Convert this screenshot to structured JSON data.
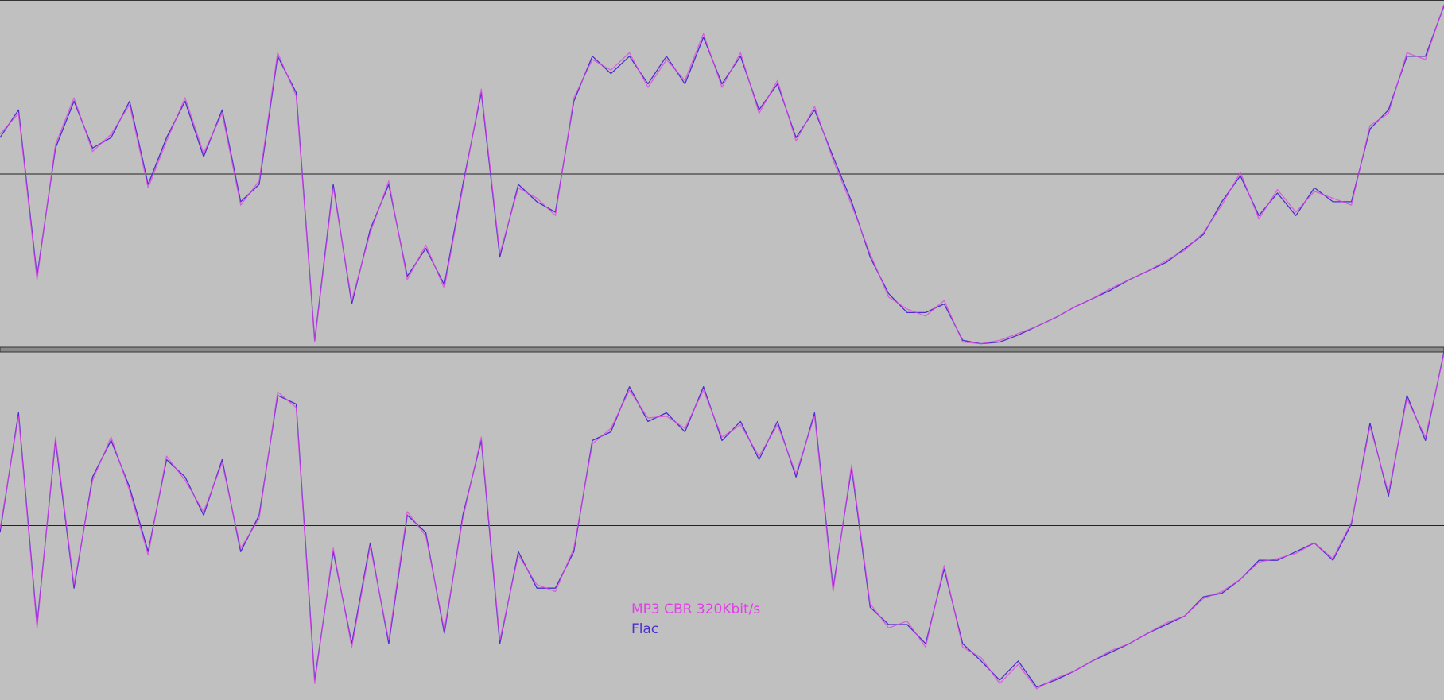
{
  "chart_data": [
    {
      "type": "line",
      "ylim": [
        -1,
        1
      ],
      "center_line": true,
      "series": [
        {
          "color": "#4a2ed0",
          "values": [
            0.21,
            0.37,
            -0.59,
            0.15,
            0.42,
            0.15,
            0.21,
            0.42,
            -0.06,
            0.21,
            0.42,
            0.1,
            0.37,
            -0.16,
            -0.06,
            0.68,
            0.47,
            -0.96,
            -0.06,
            -0.75,
            -0.32,
            -0.06,
            -0.59,
            -0.43,
            -0.64,
            -0.06,
            0.47,
            -0.48,
            -0.06,
            -0.16,
            -0.22,
            0.42,
            0.68,
            0.58,
            0.68,
            0.52,
            0.68,
            0.52,
            0.79,
            0.52,
            0.68,
            0.37,
            0.52,
            0.21,
            0.37,
            0.1,
            -0.16,
            -0.48,
            -0.69,
            -0.8,
            -0.8,
            -0.75,
            -0.96,
            -0.98,
            -0.97,
            -0.93,
            -0.88,
            -0.83,
            -0.77,
            -0.72,
            -0.67,
            -0.61,
            -0.56,
            -0.51,
            -0.43,
            -0.35,
            -0.16,
            -0.01,
            -0.24,
            -0.11,
            -0.24,
            -0.08,
            -0.16,
            -0.16,
            0.26,
            0.37,
            0.68,
            0.68,
            0.97
          ]
        },
        {
          "color": "#e040e6",
          "values": [
            0.23,
            0.35,
            -0.61,
            0.17,
            0.44,
            0.13,
            0.23,
            0.4,
            -0.08,
            0.19,
            0.44,
            0.12,
            0.35,
            -0.18,
            -0.04,
            0.7,
            0.45,
            -0.97,
            -0.08,
            -0.73,
            -0.34,
            -0.04,
            -0.61,
            -0.41,
            -0.66,
            -0.08,
            0.49,
            -0.46,
            -0.08,
            -0.14,
            -0.24,
            0.44,
            0.66,
            0.6,
            0.7,
            0.5,
            0.66,
            0.54,
            0.81,
            0.5,
            0.7,
            0.35,
            0.54,
            0.19,
            0.39,
            0.08,
            -0.18,
            -0.46,
            -0.71,
            -0.78,
            -0.82,
            -0.73,
            -0.97,
            -0.98,
            -0.96,
            -0.92,
            -0.88,
            -0.83,
            -0.77,
            -0.72,
            -0.66,
            -0.61,
            -0.56,
            -0.5,
            -0.44,
            -0.34,
            -0.18,
            0.01,
            -0.26,
            -0.09,
            -0.22,
            -0.1,
            -0.14,
            -0.18,
            0.28,
            0.35,
            0.7,
            0.66,
            0.98
          ]
        }
      ]
    },
    {
      "type": "line",
      "ylim": [
        -1,
        1
      ],
      "center_line": true,
      "series": [
        {
          "name": "Flac",
          "color": "#4a2ed0",
          "values": [
            -0.04,
            0.65,
            -0.57,
            0.49,
            -0.36,
            0.28,
            0.49,
            0.22,
            -0.15,
            0.38,
            0.28,
            0.06,
            0.38,
            -0.15,
            0.06,
            0.75,
            0.7,
            -0.89,
            -0.15,
            -0.68,
            -0.1,
            -0.68,
            0.06,
            -0.04,
            -0.62,
            0.06,
            0.49,
            -0.68,
            -0.15,
            -0.36,
            -0.36,
            -0.15,
            0.49,
            0.54,
            0.8,
            0.6,
            0.65,
            0.54,
            0.8,
            0.49,
            0.6,
            0.38,
            0.6,
            0.28,
            0.65,
            -0.36,
            0.33,
            -0.47,
            -0.57,
            -0.57,
            -0.68,
            -0.25,
            -0.68,
            -0.78,
            -0.89,
            -0.78,
            -0.93,
            -0.89,
            -0.84,
            -0.78,
            -0.73,
            -0.68,
            -0.62,
            -0.57,
            -0.52,
            -0.41,
            -0.39,
            -0.31,
            -0.2,
            -0.2,
            -0.15,
            -0.1,
            -0.2,
            0.01,
            0.59,
            0.17,
            0.75,
            0.49,
            1.0
          ]
        },
        {
          "name": "MP3 CBR 320Kbit/s",
          "color": "#e040e6",
          "values": [
            -0.02,
            0.63,
            -0.59,
            0.51,
            -0.34,
            0.26,
            0.51,
            0.2,
            -0.17,
            0.4,
            0.26,
            0.08,
            0.36,
            -0.13,
            0.04,
            0.77,
            0.68,
            -0.91,
            -0.13,
            -0.7,
            -0.12,
            -0.66,
            0.08,
            -0.06,
            -0.6,
            0.04,
            0.51,
            -0.66,
            -0.17,
            -0.34,
            -0.38,
            -0.13,
            0.47,
            0.56,
            0.78,
            0.62,
            0.63,
            0.56,
            0.78,
            0.51,
            0.58,
            0.4,
            0.58,
            0.3,
            0.63,
            -0.38,
            0.35,
            -0.45,
            -0.59,
            -0.55,
            -0.7,
            -0.23,
            -0.7,
            -0.76,
            -0.91,
            -0.8,
            -0.94,
            -0.88,
            -0.84,
            -0.78,
            -0.72,
            -0.68,
            -0.62,
            -0.56,
            -0.52,
            -0.42,
            -0.38,
            -0.31,
            -0.21,
            -0.19,
            -0.16,
            -0.1,
            -0.19,
            0.02,
            0.57,
            0.19,
            0.73,
            0.51,
            0.99
          ]
        }
      ]
    }
  ]
}
